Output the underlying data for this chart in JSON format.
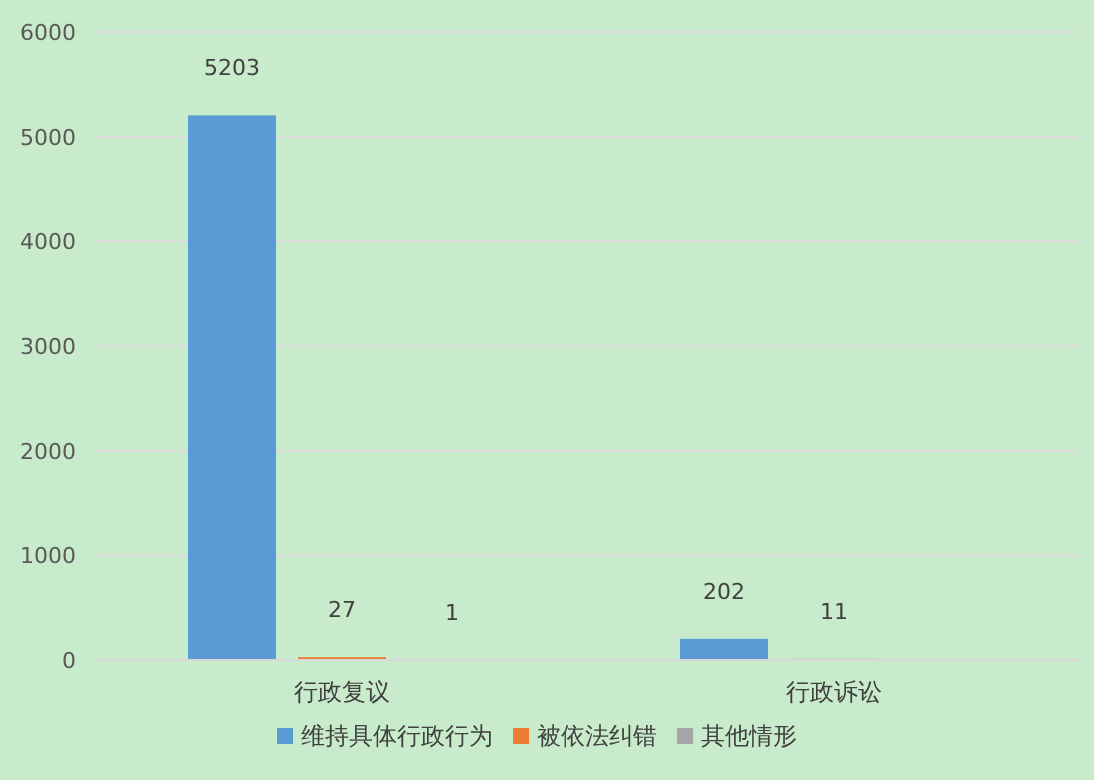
{
  "chart_data": {
    "type": "bar",
    "categories": [
      "行政复议",
      "行政诉讼"
    ],
    "series": [
      {
        "name": "维持具体行政行为",
        "color": "#5b9bd5",
        "values": [
          5203,
          202
        ]
      },
      {
        "name": "被依法纠错",
        "color": "#ed7d31",
        "values": [
          27,
          11
        ]
      },
      {
        "name": "其他情形",
        "color": "#a5a5a5",
        "values": [
          1,
          null
        ]
      }
    ],
    "ylim": [
      0,
      6000
    ],
    "yticks": [
      0,
      1000,
      2000,
      3000,
      4000,
      5000,
      6000
    ],
    "grid": "y",
    "legend": "bottom",
    "data_labels": true
  }
}
